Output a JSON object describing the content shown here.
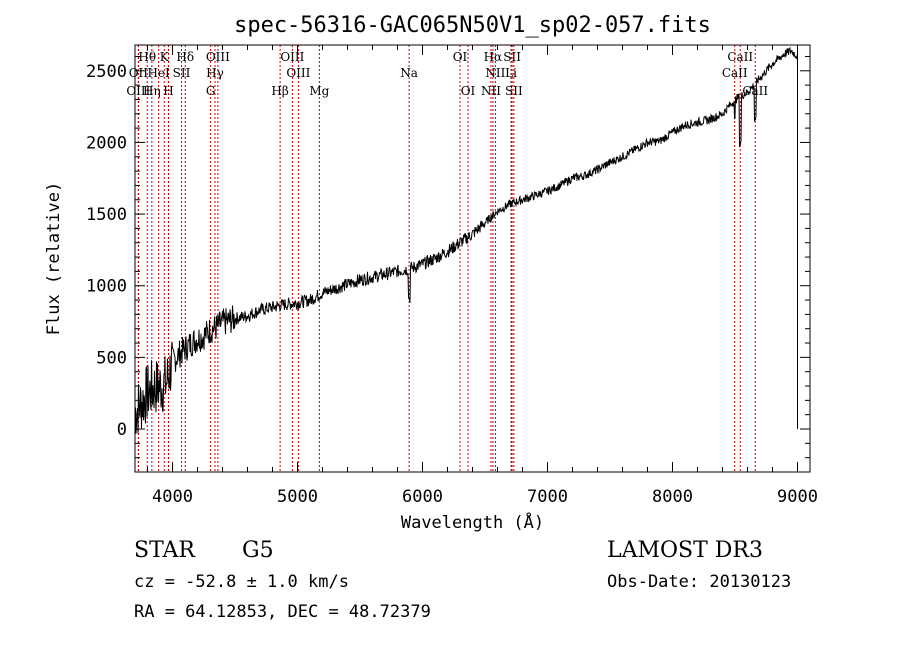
{
  "chart_data": {
    "type": "line",
    "title": "spec-56316-GAC065N50V1_sp02-057.fits",
    "xlabel": "Wavelength (Å)",
    "ylabel": "Flux (relative)",
    "xlim": [
      3700,
      9100
    ],
    "ylim": [
      -300,
      2680
    ],
    "xticks": [
      {
        "value": 4000,
        "label": "4000"
      },
      {
        "value": 5000,
        "label": "5000"
      },
      {
        "value": 6000,
        "label": "6000"
      },
      {
        "value": 7000,
        "label": "7000"
      },
      {
        "value": 8000,
        "label": "8000"
      },
      {
        "value": 9000,
        "label": "9000"
      }
    ],
    "yticks": [
      {
        "value": 0,
        "label": "0"
      },
      {
        "value": 500,
        "label": "500"
      },
      {
        "value": 1000,
        "label": "1000"
      },
      {
        "value": 1500,
        "label": "1500"
      },
      {
        "value": 2000,
        "label": "2000"
      },
      {
        "value": 2500,
        "label": "2500"
      }
    ],
    "series": [
      {
        "name": "spectrum",
        "color": "#000000",
        "x": [
          3700,
          3750,
          3800,
          3850,
          3900,
          3950,
          4000,
          4050,
          4100,
          4150,
          4200,
          4250,
          4300,
          4350,
          4400,
          4500,
          4600,
          4700,
          4800,
          4900,
          5000,
          5100,
          5200,
          5300,
          5400,
          5500,
          5600,
          5700,
          5800,
          5900,
          6000,
          6100,
          6200,
          6300,
          6400,
          6500,
          6600,
          6700,
          6800,
          6900,
          7000,
          7100,
          7200,
          7300,
          7400,
          7500,
          7600,
          7700,
          7800,
          7900,
          8000,
          8100,
          8200,
          8300,
          8400,
          8500,
          8600,
          8700,
          8800,
          8900,
          8950,
          9000
        ],
        "y": [
          120,
          180,
          250,
          290,
          300,
          320,
          470,
          520,
          560,
          600,
          630,
          650,
          690,
          710,
          740,
          770,
          790,
          830,
          850,
          870,
          880,
          900,
          950,
          980,
          1010,
          1040,
          1060,
          1080,
          1100,
          1120,
          1150,
          1190,
          1240,
          1300,
          1360,
          1440,
          1520,
          1570,
          1600,
          1630,
          1660,
          1700,
          1750,
          1770,
          1810,
          1860,
          1900,
          1950,
          2000,
          2010,
          2070,
          2120,
          2140,
          2160,
          2200,
          2300,
          2350,
          2450,
          2550,
          2620,
          2640,
          2600
        ]
      }
    ],
    "spectral_lines": [
      {
        "label": "Hθ",
        "wavelength": 3798,
        "row": 1
      },
      {
        "label": "K",
        "wavelength": 3934,
        "row": 1
      },
      {
        "label": "Hδ",
        "wavelength": 4102,
        "row": 1
      },
      {
        "label": "OIII",
        "wavelength": 4363,
        "row": 1
      },
      {
        "label": "OIII",
        "wavelength": 4959,
        "row": 1
      },
      {
        "label": "OI",
        "wavelength": 6300,
        "row": 1
      },
      {
        "label": "Hα",
        "wavelength": 6563,
        "row": 1
      },
      {
        "label": "SII",
        "wavelength": 6717,
        "row": 1
      },
      {
        "label": "CaII",
        "wavelength": 8542,
        "row": 1
      },
      {
        "label": "OII",
        "wavelength": 3727,
        "row": 2
      },
      {
        "label": "HeI",
        "wavelength": 3889,
        "row": 2
      },
      {
        "label": "SII",
        "wavelength": 4072,
        "row": 2
      },
      {
        "label": "Hγ",
        "wavelength": 4340,
        "row": 2
      },
      {
        "label": "OIII",
        "wavelength": 5007,
        "row": 2
      },
      {
        "label": "Na",
        "wavelength": 5893,
        "row": 2
      },
      {
        "label": "NII",
        "wavelength": 6583,
        "row": 2
      },
      {
        "label": "Li",
        "wavelength": 6708,
        "row": 2
      },
      {
        "label": "CaII",
        "wavelength": 8498,
        "row": 2
      },
      {
        "label": "OIII",
        "wavelength": 3727,
        "row": 3
      },
      {
        "label": "Hη",
        "wavelength": 3835,
        "row": 3
      },
      {
        "label": "H",
        "wavelength": 3968,
        "row": 3
      },
      {
        "label": "G",
        "wavelength": 4305,
        "row": 3
      },
      {
        "label": "Hβ",
        "wavelength": 4861,
        "row": 3
      },
      {
        "label": "Mg",
        "wavelength": 5175,
        "row": 3
      },
      {
        "label": "OI",
        "wavelength": 6364,
        "row": 3
      },
      {
        "label": "NII",
        "wavelength": 6548,
        "row": 3
      },
      {
        "label": "SII",
        "wavelength": 6731,
        "row": 3
      },
      {
        "label": "CaII",
        "wavelength": 8662,
        "row": 3
      }
    ],
    "line_color": "#c00000"
  },
  "info": {
    "class": "STAR",
    "subclass": "G5",
    "survey": "LAMOST DR3",
    "redshift": "cz = -52.8 ± 1.0 km/s",
    "obs_date": "Obs-Date: 20130123",
    "coords": "RA =  64.12853, DEC =  48.72379"
  }
}
